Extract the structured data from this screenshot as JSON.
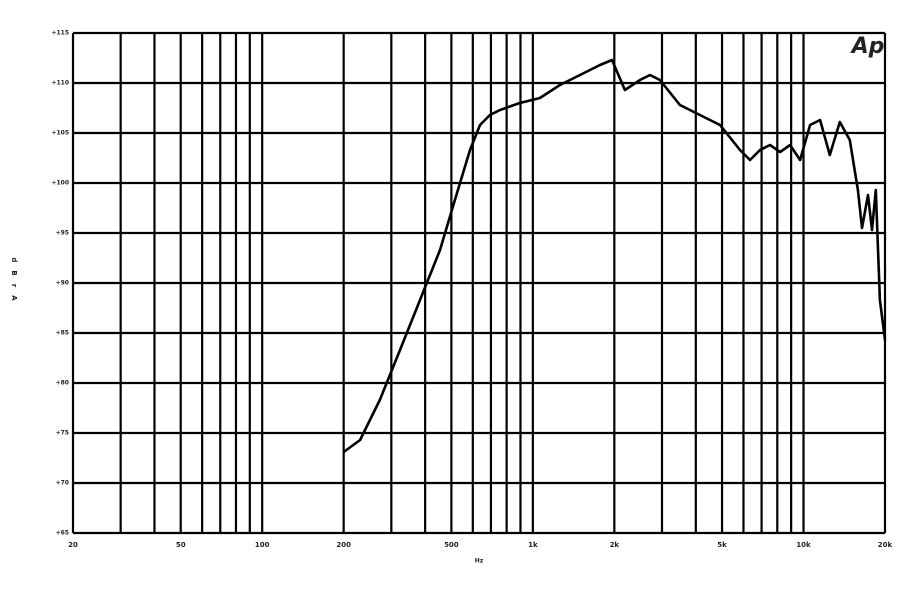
{
  "chart_data": {
    "type": "line",
    "logo": "Ap",
    "xlabel": "Hz",
    "ylabel": "dBrA",
    "xscale": "log",
    "grid": true,
    "xlim": [
      20,
      20000
    ],
    "ylim": [
      65,
      115
    ],
    "xticks": [
      20,
      50,
      100,
      200,
      500,
      {
        "value": 1000,
        "label": "1k"
      },
      {
        "value": 2000,
        "label": "2k"
      },
      {
        "value": 5000,
        "label": "5k"
      },
      {
        "value": 10000,
        "label": "10k"
      },
      {
        "value": 20000,
        "label": "20k"
      }
    ],
    "xgrid": [
      20,
      30,
      40,
      50,
      60,
      70,
      80,
      90,
      100,
      200,
      300,
      400,
      500,
      600,
      700,
      800,
      900,
      1000,
      2000,
      3000,
      4000,
      5000,
      6000,
      7000,
      8000,
      9000,
      10000,
      20000
    ],
    "yticks": [
      {
        "value": 65,
        "label": "+65"
      },
      {
        "value": 70,
        "label": "+70"
      },
      {
        "value": 75,
        "label": "+75"
      },
      {
        "value": 80,
        "label": "+80"
      },
      {
        "value": 85,
        "label": "+85"
      },
      {
        "value": 90,
        "label": "+90"
      },
      {
        "value": 95,
        "label": "+95"
      },
      {
        "value": 100,
        "label": "+100"
      },
      {
        "value": 105,
        "label": "+105"
      },
      {
        "value": 110,
        "label": "+110"
      },
      {
        "value": 115,
        "label": "+115"
      }
    ],
    "series": [
      {
        "color": "#000000",
        "x": [
          200,
          230,
          272,
          323,
          383,
          454,
          515,
          586,
          638,
          694,
          756,
          895,
          1062,
          1259,
          1493,
          1770,
          1960,
          2188,
          2488,
          2710,
          2946,
          3494,
          4143,
          4913,
          5825,
          6343,
          6907,
          7521,
          8190,
          8918,
          9711,
          10574,
          11514,
          12506,
          13618,
          14829,
          15887,
          16445,
          17300,
          17900,
          18500,
          19150,
          20000
        ],
        "values": [
          73.1,
          74.3,
          78.3,
          83.3,
          88.3,
          93.3,
          98.3,
          103.3,
          105.8,
          106.8,
          107.3,
          108.0,
          108.5,
          109.8,
          110.8,
          111.8,
          112.3,
          109.3,
          110.3,
          110.8,
          110.3,
          107.8,
          106.8,
          105.8,
          103.3,
          102.3,
          103.3,
          103.8,
          103.1,
          103.8,
          102.3,
          105.8,
          106.3,
          102.8,
          106.1,
          104.3,
          99.3,
          95.5,
          98.8,
          95.3,
          99.3,
          88.3,
          84.3
        ]
      }
    ]
  }
}
